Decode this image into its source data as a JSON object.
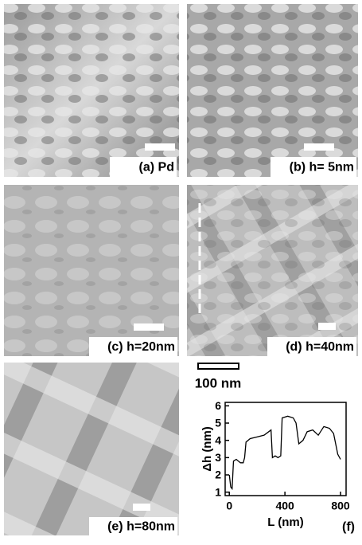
{
  "panels": [
    {
      "label": "(a) Pd"
    },
    {
      "label": "(b) h= 5nm"
    },
    {
      "label": "(c) h=20nm"
    },
    {
      "label": "(d) h=40nm"
    },
    {
      "label": "(e) h=80nm"
    }
  ],
  "scale_bar": {
    "label": "100 nm"
  },
  "chart_data": {
    "type": "line",
    "panel_label": "(f)",
    "x_label": "L (nm)",
    "y_label": "Δh (nm)",
    "x": [
      0,
      10,
      20,
      30,
      50,
      80,
      100,
      110,
      120,
      150,
      200,
      250,
      300,
      310,
      330,
      350,
      370,
      380,
      420,
      460,
      480,
      500,
      530,
      560,
      600,
      640,
      680,
      720,
      750,
      780,
      800
    ],
    "series": [
      {
        "color": "#000000",
        "values": [
          2.0,
          1.3,
          1.2,
          2.8,
          2.9,
          2.7,
          2.7,
          3.0,
          3.9,
          4.1,
          4.2,
          4.3,
          4.6,
          3.0,
          3.1,
          3.0,
          3.1,
          5.3,
          5.4,
          5.3,
          5.0,
          3.8,
          4.0,
          4.5,
          4.6,
          4.3,
          4.8,
          4.7,
          4.4,
          3.2,
          2.9
        ]
      }
    ],
    "xlim": [
      -30,
      840
    ],
    "ylim": [
      0.8,
      6.2
    ],
    "xticks": [
      0,
      400,
      800
    ],
    "yticks": [
      1,
      2,
      3,
      4,
      5,
      6
    ]
  }
}
